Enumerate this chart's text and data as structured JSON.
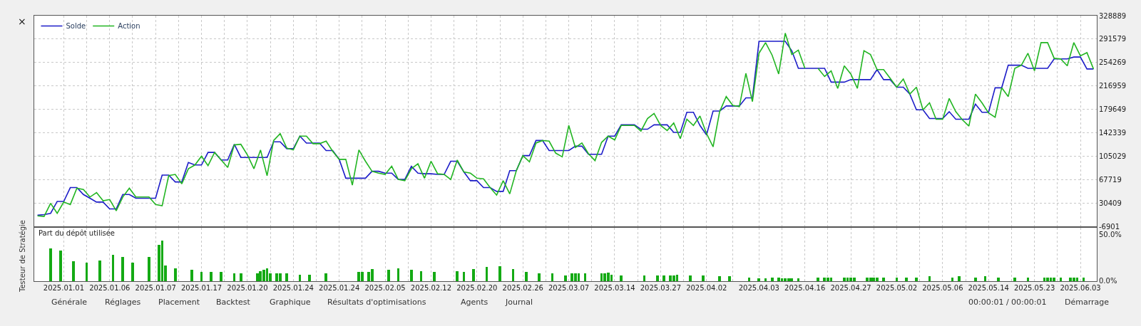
{
  "chart_data": [
    {
      "type": "line",
      "ylim": [
        -6901,
        328889
      ],
      "yticks": [
        -6901,
        30409,
        67719,
        105029,
        142339,
        179649,
        216959,
        254269,
        291579,
        328889
      ],
      "categories": [
        null,
        null,
        null,
        null,
        "2025.01.01",
        null,
        null,
        null,
        null,
        null,
        null,
        "2025.01.06",
        null,
        null,
        null,
        null,
        null,
        null,
        "2025.01.07",
        null,
        null,
        null,
        null,
        null,
        null,
        "2025.01.17",
        null,
        null,
        null,
        null,
        null,
        null,
        "2025.01.20",
        null,
        null,
        null,
        null,
        null,
        null,
        "2025.01.24",
        null,
        null,
        null,
        null,
        null,
        null,
        "2025.01.24",
        null,
        null,
        null,
        null,
        null,
        null,
        "2025.02.05",
        null,
        null,
        null,
        null,
        null,
        null,
        "2025.02.12",
        null,
        null,
        null,
        null,
        null,
        null,
        "2025.02.20",
        null,
        null,
        null,
        null,
        null,
        null,
        "2025.02.26",
        null,
        null,
        null,
        null,
        null,
        null,
        "2025.03.07",
        null,
        null,
        null,
        null,
        null,
        null,
        "2025.03.14",
        null,
        null,
        null,
        null,
        null,
        null,
        "2025.03.27",
        null,
        null,
        null,
        null,
        null,
        null,
        "2025.04.02",
        null,
        null,
        null,
        null,
        null,
        null,
        null,
        "2025.04.03",
        null,
        null,
        null,
        null,
        null,
        null,
        "2025.04.16",
        null,
        null,
        null,
        null,
        null,
        null,
        "2025.04.27",
        null,
        null,
        null,
        null,
        null,
        null,
        "2025.05.02",
        null,
        null,
        null,
        null,
        null,
        null,
        "2025.05.06",
        null,
        null,
        null,
        null,
        null,
        null,
        "2025.05.14",
        null,
        null,
        null,
        null,
        null,
        null,
        "2025.05.23",
        null,
        null,
        null,
        null,
        null,
        null,
        "2025.06.03",
        null,
        null
      ],
      "grid": true,
      "legend": "top left",
      "tick_labels": "y",
      "series": [
        {
          "name": "Solde",
          "color": "#1c1cc8",
          "values": [
            11000,
            12000,
            14000,
            33000,
            33000,
            55000,
            55000,
            44000,
            38000,
            32000,
            32000,
            21000,
            21000,
            44000,
            44000,
            38000,
            38000,
            38000,
            38000,
            75000,
            75000,
            64000,
            64000,
            95000,
            91000,
            91000,
            111000,
            111000,
            99000,
            99000,
            124000,
            103000,
            103000,
            103000,
            103000,
            103000,
            128000,
            128000,
            117000,
            117000,
            137000,
            126000,
            126000,
            126000,
            114000,
            114000,
            100000,
            70000,
            70000,
            70000,
            70000,
            81000,
            81000,
            78000,
            78000,
            68000,
            68000,
            89000,
            78000,
            77000,
            77000,
            76000,
            76000,
            97000,
            97000,
            80000,
            66000,
            66000,
            55000,
            55000,
            49000,
            49000,
            82000,
            82000,
            106000,
            106000,
            130000,
            130000,
            114000,
            114000,
            114000,
            114000,
            121000,
            121000,
            108000,
            108000,
            108000,
            137000,
            137000,
            155000,
            155000,
            155000,
            148000,
            148000,
            155000,
            155000,
            155000,
            143000,
            143000,
            175000,
            175000,
            154000,
            139000,
            177000,
            177000,
            185000,
            185000,
            185000,
            198000,
            198000,
            288000,
            288000,
            288000,
            288000,
            288000,
            273000,
            245000,
            245000,
            245000,
            245000,
            245000,
            223000,
            223000,
            223000,
            227000,
            227000,
            227000,
            227000,
            243000,
            227000,
            227000,
            215000,
            215000,
            204000,
            179000,
            179000,
            165000,
            165000,
            165000,
            176000,
            164000,
            164000,
            164000,
            188000,
            175000,
            175000,
            214000,
            214000,
            250000,
            250000,
            250000,
            245000,
            245000,
            245000,
            245000,
            260000,
            260000,
            260000,
            263000,
            263000,
            244000,
            244000
          ]
        },
        {
          "name": "Action",
          "color": "#22b522",
          "values": [
            10000,
            9000,
            30000,
            14000,
            32000,
            28000,
            54000,
            52000,
            40000,
            47000,
            34000,
            36000,
            18000,
            40000,
            54000,
            40000,
            40000,
            40000,
            28000,
            26000,
            74000,
            76000,
            61000,
            85000,
            91000,
            105000,
            90000,
            111000,
            99000,
            87000,
            123000,
            124000,
            107000,
            85000,
            115000,
            74000,
            130000,
            141000,
            118000,
            115000,
            137000,
            137000,
            125000,
            125000,
            129000,
            113000,
            100000,
            100000,
            59000,
            115000,
            97000,
            81000,
            78000,
            76000,
            89000,
            68000,
            66000,
            85000,
            93000,
            70000,
            97000,
            77000,
            76000,
            68000,
            99000,
            80000,
            78000,
            70000,
            69000,
            55000,
            43000,
            66000,
            45000,
            82000,
            106000,
            96000,
            126000,
            130000,
            129000,
            110000,
            104000,
            154000,
            119000,
            126000,
            109000,
            98000,
            127000,
            137000,
            131000,
            154000,
            154000,
            154000,
            145000,
            165000,
            173000,
            154000,
            146000,
            158000,
            133000,
            164000,
            154000,
            169000,
            141000,
            120000,
            176000,
            200000,
            186000,
            184000,
            237000,
            192000,
            269000,
            286000,
            266000,
            236000,
            301000,
            267000,
            274000,
            245000,
            null,
            245000,
            232000,
            241000,
            213000,
            249000,
            236000,
            213000,
            273000,
            267000,
            243000,
            243000,
            229000,
            215000,
            228000,
            204000,
            215000,
            179000,
            190000,
            164000,
            164000,
            197000,
            176000,
            163000,
            153000,
            204000,
            190000,
            174000,
            167000,
            214000,
            200000,
            245000,
            250000,
            269000,
            241000,
            286000,
            286000,
            261000,
            260000,
            249000,
            286000,
            265000,
            270000,
            244000
          ]
        }
      ]
    },
    {
      "type": "bar",
      "title": "Part du dépôt utilisée",
      "color": "#14aa14",
      "ylim": [
        0,
        57
      ],
      "yticks": [
        {
          "value": 0,
          "label": "0.0%"
        },
        {
          "value": 50,
          "label": "50.0%"
        }
      ],
      "categories": [
        null,
        null,
        null,
        null,
        null,
        null,
        null,
        null,
        "2025.01.01",
        null,
        null,
        null,
        null,
        null,
        null,
        null,
        null,
        null,
        null,
        null,
        null,
        null,
        "2025.01.06",
        null,
        null,
        null,
        null,
        null,
        null,
        null,
        null,
        null,
        null,
        null,
        null,
        null,
        "2025.01.07",
        null,
        null,
        null,
        null,
        null,
        null,
        null,
        null,
        null,
        null,
        null,
        null,
        null,
        "2025.01.17",
        null,
        null,
        null,
        null,
        null,
        null,
        null,
        null,
        null,
        null,
        null,
        null,
        null,
        "2025.01.20",
        null,
        null,
        null,
        null,
        null,
        null,
        null,
        null,
        null,
        null,
        null,
        null,
        null,
        "2025.01.24",
        null,
        null,
        null,
        null,
        null,
        null,
        null,
        null,
        null,
        null,
        null,
        null,
        null,
        "2025.01.24",
        null,
        null,
        null,
        null,
        null,
        null,
        null,
        null,
        null,
        null,
        null,
        null,
        null,
        "2025.02.05",
        null,
        null,
        null,
        null,
        null,
        null,
        null,
        null,
        null,
        null,
        null,
        null,
        null,
        "2025.02.12",
        null,
        null,
        null,
        null,
        null,
        null,
        null,
        null,
        null,
        null,
        null,
        null,
        null,
        "2025.02.20",
        null,
        null,
        null,
        null,
        null,
        null,
        null,
        null,
        null,
        null,
        null,
        null,
        null,
        "2025.02.26",
        null,
        null,
        null,
        null,
        null,
        null,
        null,
        null,
        null,
        null,
        null,
        null,
        null,
        "2025.03.07",
        null,
        null,
        null,
        null,
        null,
        null,
        null,
        null,
        null,
        null,
        null,
        null,
        null,
        "2025.03.14",
        null,
        null,
        null,
        null,
        null,
        null,
        null,
        null,
        null,
        null,
        null,
        null,
        null,
        "2025.03.27",
        null,
        null,
        null,
        null,
        null,
        null,
        null,
        null,
        null,
        null,
        null,
        null,
        null,
        "2025.04.02",
        null,
        null,
        null,
        null,
        null,
        null,
        null,
        null,
        null,
        null,
        null,
        null,
        null,
        null,
        null,
        "2025.04.03",
        null,
        null,
        null,
        null,
        null,
        null,
        null,
        null,
        null,
        null,
        null,
        null,
        null,
        "2025.04.16",
        null,
        null,
        null,
        null,
        null,
        null,
        null,
        null,
        null,
        null,
        null,
        null,
        null,
        "2025.04.27",
        null,
        null,
        null,
        null,
        null,
        null,
        null,
        null,
        null,
        null,
        null,
        null,
        null,
        "2025.05.02",
        null,
        null,
        null,
        null,
        null,
        null,
        null,
        null,
        null,
        null,
        null,
        null,
        null,
        "2025.05.06",
        null,
        null,
        null,
        null,
        null,
        null,
        null,
        null,
        null,
        null,
        null,
        null,
        null,
        "2025.05.14",
        null,
        null,
        null,
        null,
        null,
        null,
        null,
        null,
        null,
        null,
        null,
        null,
        null,
        "2025.05.23",
        null,
        null,
        null,
        null,
        null,
        null,
        null,
        null,
        null,
        null,
        null,
        null,
        null,
        "2025.06.03",
        null,
        null,
        null,
        null,
        null
      ],
      "grid": "x",
      "values": [
        null,
        null,
        null,
        null,
        35,
        null,
        null,
        33,
        null,
        null,
        null,
        21,
        null,
        null,
        null,
        20,
        null,
        null,
        null,
        22,
        null,
        null,
        null,
        28,
        null,
        null,
        26,
        null,
        null,
        20,
        null,
        null,
        null,
        null,
        26,
        null,
        null,
        39,
        43,
        17,
        null,
        null,
        14,
        null,
        null,
        null,
        null,
        12,
        null,
        null,
        10,
        null,
        null,
        10,
        null,
        null,
        10,
        null,
        null,
        null,
        8,
        null,
        8,
        null,
        null,
        null,
        null,
        8,
        11,
        12,
        14,
        8,
        null,
        8,
        8,
        null,
        8,
        null,
        null,
        null,
        7,
        null,
        null,
        7,
        null,
        null,
        null,
        null,
        8,
        null,
        null,
        null,
        null,
        null,
        null,
        null,
        null,
        null,
        10,
        10,
        null,
        10,
        13,
        null,
        null,
        null,
        null,
        12,
        null,
        null,
        14,
        null,
        null,
        null,
        12,
        null,
        null,
        11,
        null,
        null,
        null,
        10,
        null,
        null,
        null,
        null,
        null,
        null,
        11,
        null,
        10,
        null,
        null,
        13,
        null,
        null,
        null,
        15,
        null,
        null,
        null,
        16,
        null,
        null,
        null,
        13,
        null,
        null,
        null,
        10,
        null,
        null,
        null,
        8,
        null,
        null,
        null,
        8,
        null,
        null,
        null,
        6,
        null,
        8,
        8,
        8,
        null,
        8,
        null,
        null,
        null,
        null,
        8,
        8,
        9,
        7,
        null,
        null,
        6,
        null,
        null,
        null,
        null,
        null,
        null,
        6,
        null,
        null,
        null,
        6,
        null,
        6,
        null,
        6,
        6,
        7,
        null,
        null,
        null,
        6,
        null,
        null,
        null,
        6,
        null,
        null,
        null,
        null,
        5,
        null,
        null,
        5,
        null,
        null,
        null,
        null,
        null,
        4,
        null,
        null,
        3,
        null,
        3,
        null,
        4,
        null,
        4,
        3,
        3,
        3,
        3,
        null,
        3,
        null,
        null,
        null,
        null,
        null,
        4,
        null,
        4,
        4,
        4,
        null,
        null,
        null,
        4,
        4,
        4,
        4,
        null,
        null,
        null,
        4,
        4,
        4,
        4,
        null,
        4,
        null,
        null,
        null,
        4,
        null,
        null,
        4,
        null,
        null,
        4,
        null,
        null,
        null,
        5,
        null,
        null,
        null,
        null,
        null,
        null,
        4,
        null,
        5,
        null,
        null,
        null,
        null,
        4,
        null,
        null,
        5,
        null,
        null,
        null,
        4,
        null,
        null,
        null,
        null,
        4,
        null,
        null,
        null,
        4,
        null,
        null,
        null,
        null,
        4,
        4,
        4,
        4,
        null,
        4,
        null,
        null,
        4,
        4,
        4,
        null,
        4,
        null,
        null,
        null,
        null
      ]
    },
    {
      "type": "other",
      "annotations": [
        "×",
        "Testeur de Stratégie",
        "Générale",
        "Réglages",
        "Placement",
        "Backtest",
        "Graphique",
        "Résultats d'optimisations",
        "Agents",
        "Journal",
        "00:00:01 / 00:00:01",
        "Démarrage"
      ]
    }
  ]
}
